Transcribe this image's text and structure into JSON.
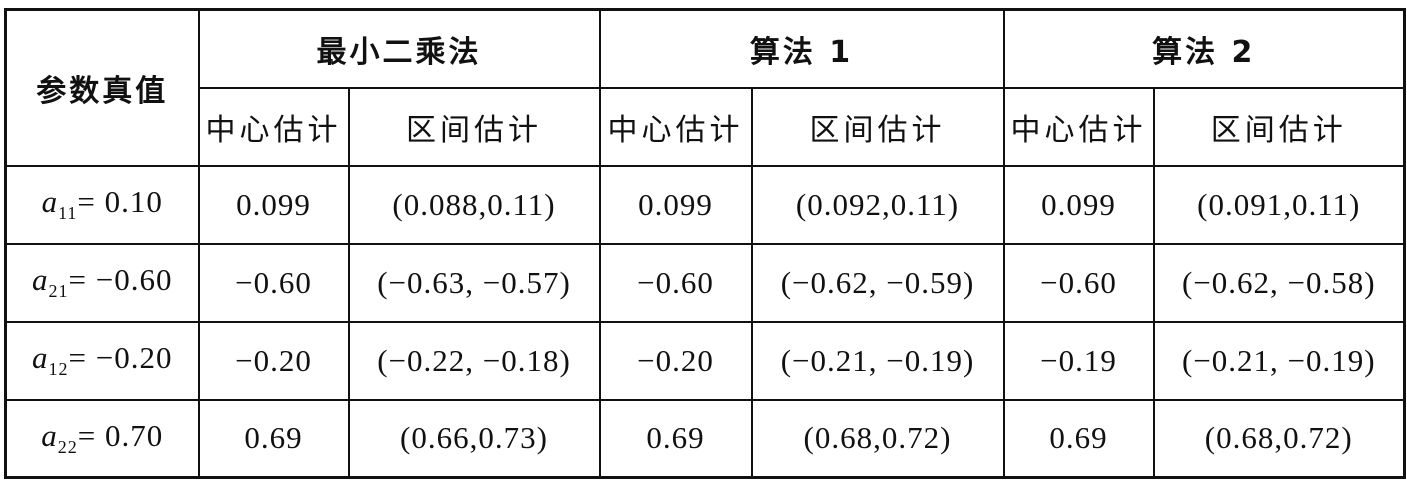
{
  "table": {
    "header_param": "参数真值",
    "groups": [
      "最小二乘法",
      "算法 1",
      "算法 2"
    ],
    "sub_headers": [
      "中心估计",
      "区间估计"
    ],
    "rows": [
      {
        "symbol": "a",
        "index": "11",
        "rhs": "= 0.10",
        "cells": [
          "0.099",
          "(0.088,0.11)",
          "0.099",
          "(0.092,0.11)",
          "0.099",
          "(0.091,0.11)"
        ]
      },
      {
        "symbol": "a",
        "index": "21",
        "rhs": "= −0.60",
        "cells": [
          "−0.60",
          "(−0.63, −0.57)",
          "−0.60",
          "(−0.62, −0.59)",
          "−0.60",
          "(−0.62, −0.58)"
        ]
      },
      {
        "symbol": "a",
        "index": "12",
        "rhs": "= −0.20",
        "cells": [
          "−0.20",
          "(−0.22, −0.18)",
          "−0.20",
          "(−0.21, −0.19)",
          "−0.19",
          "(−0.21, −0.19)"
        ]
      },
      {
        "symbol": "a",
        "index": "22",
        "rhs": "= 0.70",
        "cells": [
          "0.69",
          "(0.66,0.73)",
          "0.69",
          "(0.68,0.72)",
          "0.69",
          "(0.68,0.72)"
        ]
      }
    ]
  }
}
